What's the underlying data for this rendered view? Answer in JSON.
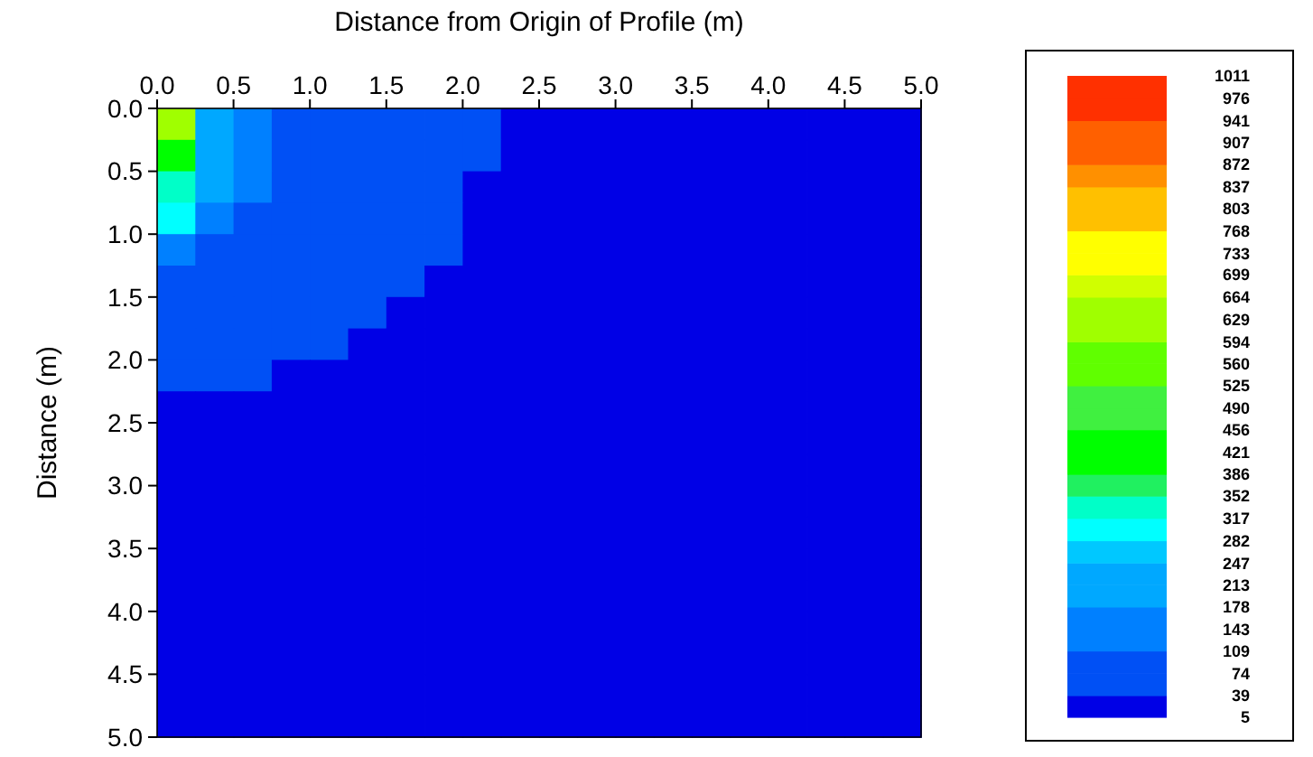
{
  "chart_data": {
    "type": "heatmap",
    "xlabel": "Distance from Origin of Profile (m)",
    "ylabel": "Distance (m)",
    "x": [
      0.125,
      0.375,
      0.625,
      0.875,
      1.125,
      1.375,
      1.625,
      1.875,
      2.125,
      2.375,
      2.625,
      2.875,
      3.125,
      3.375,
      3.625,
      3.875,
      4.125,
      4.375,
      4.625,
      4.875
    ],
    "y": [
      0.125,
      0.375,
      0.625,
      0.875,
      1.125,
      1.375,
      1.625,
      1.875,
      2.125,
      2.375,
      2.625,
      2.875,
      3.125,
      3.375,
      3.625,
      3.875,
      4.125,
      4.375,
      4.625,
      4.875
    ],
    "xlim": [
      0,
      5
    ],
    "ylim": [
      5,
      0
    ],
    "xticks": [
      {
        "value": 0,
        "label": "0.0"
      },
      {
        "value": 0.5,
        "label": "0.5"
      },
      {
        "value": 1,
        "label": "1.0"
      },
      {
        "value": 1.5,
        "label": "1.5"
      },
      {
        "value": 2,
        "label": "2.0"
      },
      {
        "value": 2.5,
        "label": "2.5"
      },
      {
        "value": 3,
        "label": "3.0"
      },
      {
        "value": 3.5,
        "label": "3.5"
      },
      {
        "value": 4,
        "label": "4.0"
      },
      {
        "value": 4.5,
        "label": "4.5"
      },
      {
        "value": 5,
        "label": "5.0"
      }
    ],
    "yticks": [
      {
        "value": 0,
        "label": "0.0"
      },
      {
        "value": 0.5,
        "label": "0.5"
      },
      {
        "value": 1,
        "label": "1.0"
      },
      {
        "value": 1.5,
        "label": "1.5"
      },
      {
        "value": 2,
        "label": "2.0"
      },
      {
        "value": 2.5,
        "label": "2.5"
      },
      {
        "value": 3,
        "label": "3.0"
      },
      {
        "value": 3.5,
        "label": "3.5"
      },
      {
        "value": 4,
        "label": "4.0"
      },
      {
        "value": 4.5,
        "label": "4.5"
      },
      {
        "value": 5,
        "label": "5.0"
      }
    ],
    "clim": [
      5,
      1011
    ],
    "cticks": [
      5,
      39,
      74,
      109,
      143,
      178,
      213,
      247,
      282,
      317,
      352,
      386,
      421,
      456,
      490,
      525,
      560,
      594,
      629,
      664,
      699,
      733,
      768,
      803,
      837,
      872,
      907,
      941,
      976,
      1011
    ],
    "colors": [
      "#0000e6",
      "#0050f5",
      "#0050f5",
      "#0080ff",
      "#0080ff",
      "#00a8ff",
      "#00a8ff",
      "#00c8ff",
      "#00ffff",
      "#00ffc8",
      "#20f060",
      "#00ff00",
      "#00ff00",
      "#40f040",
      "#40f040",
      "#60ff00",
      "#60ff00",
      "#a0ff00",
      "#a0ff00",
      "#d0ff00",
      "#ffff00",
      "#ffff00",
      "#ffc000",
      "#ffc000",
      "#ff9000",
      "#ff6000",
      "#ff6000",
      "#ff3000",
      "#ff3000"
    ],
    "cells": [
      [
        600,
        230,
        160,
        90,
        90,
        90,
        90,
        90,
        90,
        22,
        22,
        22,
        22,
        22,
        22,
        22,
        22,
        22,
        22,
        22
      ],
      [
        450,
        230,
        160,
        90,
        90,
        90,
        90,
        90,
        90,
        22,
        22,
        22,
        22,
        22,
        22,
        22,
        22,
        22,
        22,
        22
      ],
      [
        350,
        230,
        160,
        90,
        90,
        90,
        90,
        90,
        22,
        22,
        22,
        22,
        22,
        22,
        22,
        22,
        22,
        22,
        22,
        22
      ],
      [
        300,
        160,
        90,
        90,
        90,
        90,
        90,
        90,
        22,
        22,
        22,
        22,
        22,
        22,
        22,
        22,
        22,
        22,
        22,
        22
      ],
      [
        160,
        90,
        90,
        90,
        90,
        90,
        90,
        90,
        22,
        22,
        22,
        22,
        22,
        22,
        22,
        22,
        22,
        22,
        22,
        22
      ],
      [
        90,
        90,
        90,
        90,
        90,
        90,
        90,
        22,
        22,
        22,
        22,
        22,
        22,
        22,
        22,
        22,
        22,
        22,
        22,
        22
      ],
      [
        90,
        90,
        90,
        90,
        90,
        90,
        22,
        22,
        22,
        22,
        22,
        22,
        22,
        22,
        22,
        22,
        22,
        22,
        22,
        22
      ],
      [
        90,
        90,
        90,
        90,
        90,
        22,
        22,
        22,
        22,
        22,
        22,
        22,
        22,
        22,
        22,
        22,
        22,
        22,
        22,
        22
      ],
      [
        90,
        90,
        90,
        22,
        22,
        22,
        22,
        22,
        22,
        22,
        22,
        22,
        22,
        22,
        22,
        22,
        22,
        22,
        22,
        22
      ],
      [
        22,
        22,
        22,
        22,
        22,
        22,
        22,
        22,
        22,
        22,
        22,
        22,
        22,
        22,
        22,
        22,
        22,
        22,
        22,
        22
      ],
      [
        22,
        22,
        22,
        22,
        22,
        22,
        22,
        22,
        22,
        22,
        22,
        22,
        22,
        22,
        22,
        22,
        22,
        22,
        22,
        22
      ],
      [
        22,
        22,
        22,
        22,
        22,
        22,
        22,
        22,
        22,
        22,
        22,
        22,
        22,
        22,
        22,
        22,
        22,
        22,
        22,
        22
      ],
      [
        22,
        22,
        22,
        22,
        22,
        22,
        22,
        22,
        22,
        22,
        22,
        22,
        22,
        22,
        22,
        22,
        22,
        22,
        22,
        22
      ],
      [
        22,
        22,
        22,
        22,
        22,
        22,
        22,
        22,
        22,
        22,
        22,
        22,
        22,
        22,
        22,
        22,
        22,
        22,
        22,
        22
      ],
      [
        22,
        22,
        22,
        22,
        22,
        22,
        22,
        22,
        22,
        22,
        22,
        22,
        22,
        22,
        22,
        22,
        22,
        22,
        22,
        22
      ],
      [
        22,
        22,
        22,
        22,
        22,
        22,
        22,
        22,
        22,
        22,
        22,
        22,
        22,
        22,
        22,
        22,
        22,
        22,
        22,
        22
      ],
      [
        22,
        22,
        22,
        22,
        22,
        22,
        22,
        22,
        22,
        22,
        22,
        22,
        22,
        22,
        22,
        22,
        22,
        22,
        22,
        22
      ],
      [
        22,
        22,
        22,
        22,
        22,
        22,
        22,
        22,
        22,
        22,
        22,
        22,
        22,
        22,
        22,
        22,
        22,
        22,
        22,
        22
      ],
      [
        22,
        22,
        22,
        22,
        22,
        22,
        22,
        22,
        22,
        22,
        22,
        22,
        22,
        22,
        22,
        22,
        22,
        22,
        22,
        22
      ],
      [
        22,
        22,
        22,
        22,
        22,
        22,
        22,
        22,
        22,
        22,
        22,
        22,
        22,
        22,
        22,
        22,
        22,
        22,
        22,
        22
      ]
    ]
  }
}
